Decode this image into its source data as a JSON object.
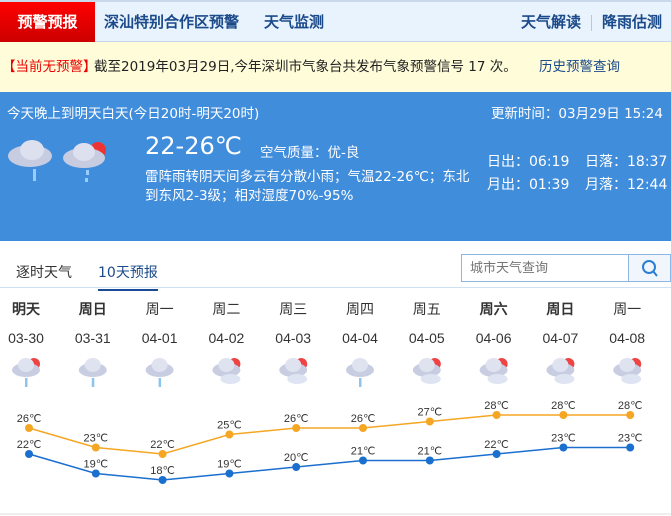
{
  "nav": {
    "active": "预警预报",
    "items": [
      "深汕特别合作区预警",
      "天气监测"
    ],
    "right": [
      "天气解读",
      "降雨估测"
    ]
  },
  "warning": {
    "status": "【当前无预警】",
    "text": "截至2019年03月29日,今年深圳市气象台共发布气象预警信号 17 次。",
    "link": "历史预警查询"
  },
  "now": {
    "period": "今天晚上到明天白天(今日20时-明天20时)",
    "update": "更新时间：03月29日 15:24",
    "temp": "22-26℃",
    "air": "空气质量：优-良",
    "desc1": "雷阵雨转阴天间多云有分散小雨；气温22-26℃；东北",
    "desc2": "到东风2-3级；相对湿度70%-95%",
    "sunrise": "日出：06:19",
    "sunset": "日落：18:37",
    "moonrise": "月出：01:39",
    "moonset": "月落：12:44",
    "icons": [
      "thunder-rain-icon",
      "partly-cloudy-rain-icon"
    ]
  },
  "tabs": [
    "逐时天气",
    "10天预报"
  ],
  "search": {
    "placeholder": "城市天气查询"
  },
  "colors": {
    "high": "#f5a623",
    "low": "#1a6fcf",
    "panel": "#408ddc",
    "alert": "#e00000"
  },
  "chart_data": {
    "type": "line",
    "categories": [
      "03-30",
      "03-31",
      "04-01",
      "04-02",
      "04-03",
      "04-04",
      "04-05",
      "04-06",
      "04-07",
      "04-08"
    ],
    "days": [
      "明天",
      "周日",
      "周一",
      "周二",
      "周三",
      "周四",
      "周五",
      "周六",
      "周日",
      "周一"
    ],
    "icons": [
      "partly-cloudy-rain",
      "rain",
      "rain",
      "partly-cloudy",
      "partly-cloudy",
      "rain",
      "partly-cloudy",
      "partly-cloudy",
      "partly-cloudy",
      "partly-cloudy"
    ],
    "series": [
      {
        "values": [
          26,
          23,
          22,
          25,
          26,
          26,
          27,
          28,
          28,
          28
        ]
      },
      {
        "values": [
          22,
          19,
          18,
          19,
          20,
          21,
          21,
          22,
          23,
          23
        ]
      }
    ],
    "unit": "℃"
  }
}
